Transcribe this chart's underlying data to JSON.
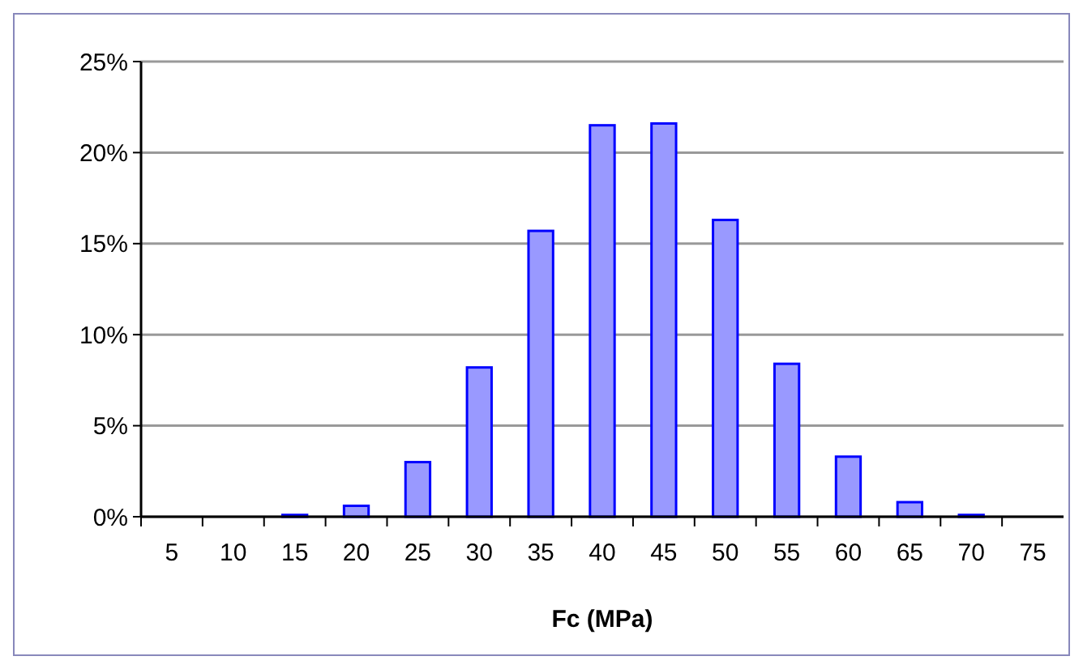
{
  "chart_data": {
    "type": "bar",
    "xlabel": "Fc (MPa)",
    "categories": [
      "5",
      "10",
      "15",
      "20",
      "25",
      "30",
      "35",
      "40",
      "45",
      "50",
      "55",
      "60",
      "65",
      "70",
      "75"
    ],
    "values": [
      0,
      0,
      0.1,
      0.6,
      3.0,
      8.2,
      15.7,
      21.5,
      21.6,
      16.3,
      8.4,
      3.3,
      0.8,
      0.1,
      0
    ],
    "color": "#9999ff",
    "ylim": [
      0,
      25
    ],
    "yticks": [
      {
        "value": 0,
        "label": "0%"
      },
      {
        "value": 5,
        "label": "5%"
      },
      {
        "value": 10,
        "label": "10%"
      },
      {
        "value": 15,
        "label": "15%"
      },
      {
        "value": 20,
        "label": "20%"
      },
      {
        "value": 25,
        "label": "25%"
      }
    ],
    "grid": "y"
  }
}
